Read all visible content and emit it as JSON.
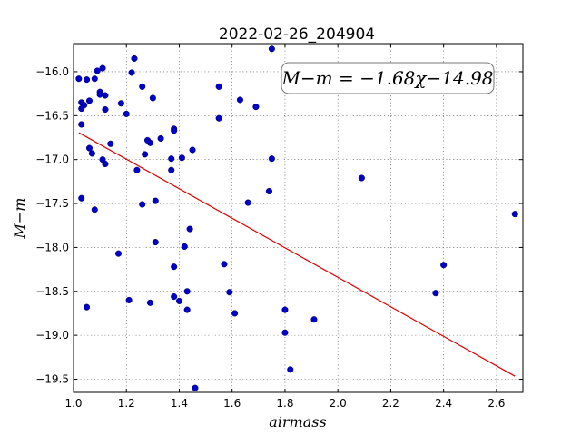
{
  "chart_data": {
    "type": "scatter",
    "title": "2022-02-26_204904",
    "xlabel": "airmass",
    "ylabel": "M−m",
    "xlim": [
      1.0,
      2.7
    ],
    "ylim": [
      -19.65,
      -15.68
    ],
    "y_inverted": true,
    "grid": true,
    "xticks": [
      1.0,
      1.2,
      1.4,
      1.6,
      1.8,
      2.0,
      2.2,
      2.4,
      2.6
    ],
    "xtick_labels": [
      "1.0",
      "1.2",
      "1.4",
      "1.6",
      "1.8",
      "2.0",
      "2.2",
      "2.4",
      "2.6"
    ],
    "yticks": [
      -16.0,
      -16.5,
      -17.0,
      -17.5,
      -18.0,
      -18.5,
      -19.0,
      -19.5
    ],
    "ytick_labels": [
      "−16.0",
      "−16.5",
      "−17.0",
      "−17.5",
      "−18.0",
      "−18.5",
      "−19.0",
      "−19.5"
    ],
    "annotation": "M−m = −1.68χ−14.98",
    "annotation_location": "top-right",
    "fit": {
      "slope": -1.68,
      "intercept": -14.98,
      "x_range": [
        1.02,
        2.67
      ],
      "color": "#e00000"
    },
    "points_color": "#0000c8",
    "points": [
      [
        1.03,
        -16.35
      ],
      [
        1.02,
        -16.08
      ],
      [
        1.05,
        -16.09
      ],
      [
        1.03,
        -16.42
      ],
      [
        1.04,
        -16.38
      ],
      [
        1.06,
        -16.33
      ],
      [
        1.03,
        -16.6
      ],
      [
        1.09,
        -15.99
      ],
      [
        1.11,
        -15.96
      ],
      [
        1.08,
        -16.08
      ],
      [
        1.1,
        -16.23
      ],
      [
        1.1,
        -16.26
      ],
      [
        1.12,
        -16.27
      ],
      [
        1.12,
        -16.43
      ],
      [
        1.06,
        -16.87
      ],
      [
        1.07,
        -16.93
      ],
      [
        1.14,
        -16.82
      ],
      [
        1.11,
        -17.0
      ],
      [
        1.12,
        -17.05
      ],
      [
        1.18,
        -16.36
      ],
      [
        1.2,
        -16.48
      ],
      [
        1.22,
        -16.01
      ],
      [
        1.23,
        -15.85
      ],
      [
        1.26,
        -16.17
      ],
      [
        1.3,
        -16.3
      ],
      [
        1.27,
        -16.94
      ],
      [
        1.28,
        -16.78
      ],
      [
        1.29,
        -16.81
      ],
      [
        1.33,
        -16.76
      ],
      [
        1.37,
        -16.99
      ],
      [
        1.37,
        -17.12
      ],
      [
        1.38,
        -16.65
      ],
      [
        1.38,
        -16.67
      ],
      [
        1.41,
        -16.98
      ],
      [
        1.45,
        -16.89
      ],
      [
        1.24,
        -17.12
      ],
      [
        1.03,
        -17.44
      ],
      [
        1.08,
        -17.57
      ],
      [
        1.26,
        -17.51
      ],
      [
        1.31,
        -17.47
      ],
      [
        1.31,
        -17.94
      ],
      [
        1.17,
        -18.07
      ],
      [
        1.42,
        -17.99
      ],
      [
        1.44,
        -17.79
      ],
      [
        1.38,
        -18.22
      ],
      [
        1.05,
        -18.68
      ],
      [
        1.21,
        -18.6
      ],
      [
        1.29,
        -18.63
      ],
      [
        1.38,
        -18.56
      ],
      [
        1.4,
        -18.61
      ],
      [
        1.43,
        -18.5
      ],
      [
        1.43,
        -18.71
      ],
      [
        1.46,
        -19.6
      ],
      [
        1.55,
        -16.17
      ],
      [
        1.55,
        -16.53
      ],
      [
        1.63,
        -16.32
      ],
      [
        1.69,
        -16.4
      ],
      [
        1.75,
        -15.74
      ],
      [
        1.75,
        -16.99
      ],
      [
        1.74,
        -17.36
      ],
      [
        1.66,
        -17.49
      ],
      [
        1.57,
        -18.19
      ],
      [
        1.59,
        -18.51
      ],
      [
        1.61,
        -18.75
      ],
      [
        1.8,
        -18.71
      ],
      [
        1.8,
        -18.97
      ],
      [
        1.82,
        -19.39
      ],
      [
        1.91,
        -18.82
      ],
      [
        2.09,
        -17.21
      ],
      [
        2.37,
        -18.52
      ],
      [
        2.4,
        -18.2
      ],
      [
        2.67,
        -17.62
      ]
    ]
  }
}
